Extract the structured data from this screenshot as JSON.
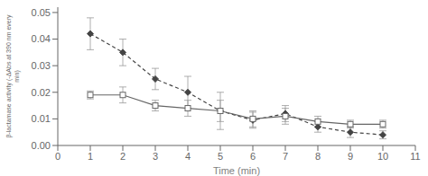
{
  "chart_data": {
    "type": "line",
    "title": "",
    "xlabel": "Time (min)",
    "ylabel": "β-lactamase activity (-ΔAbs at 390 nm every\nmin)",
    "x": [
      1,
      2,
      3,
      4,
      5,
      6,
      7,
      8,
      9,
      10
    ],
    "series": [
      {
        "color": "#444444",
        "marker": "diamond",
        "line_style": "dashed",
        "values": [
          0.042,
          0.035,
          0.025,
          0.02,
          0.013,
          0.0095,
          0.012,
          0.007,
          0.005,
          0.004
        ],
        "errors": [
          0.006,
          0.005,
          0.004,
          0.006,
          0.007,
          0.003,
          0.003,
          0.002,
          0.002,
          0.0015
        ]
      },
      {
        "color": "#666666",
        "marker": "square",
        "line_style": "solid",
        "values": [
          0.019,
          0.019,
          0.015,
          0.014,
          0.013,
          0.01,
          0.011,
          0.009,
          0.008,
          0.008
        ],
        "errors": [
          0.0015,
          0.003,
          0.002,
          0.003,
          0.004,
          0.003,
          0.003,
          0.002,
          0.0015,
          0.0015
        ]
      }
    ],
    "xlim": [
      0,
      11
    ],
    "xticks": [
      0,
      1,
      2,
      3,
      4,
      5,
      6,
      7,
      8,
      9,
      10,
      11
    ],
    "ylim": [
      0,
      0.052
    ],
    "yticks": [
      {
        "value": 0,
        "label": "0.00"
      },
      0.01,
      0.02,
      0.03,
      0.04,
      0.05
    ],
    "grid": false
  }
}
